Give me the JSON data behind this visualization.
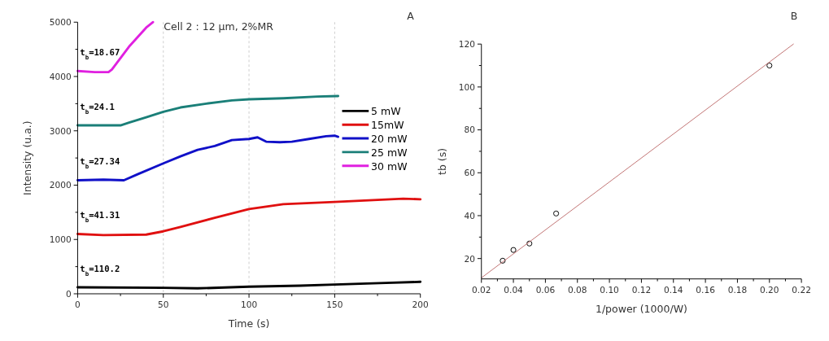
{
  "chart_data": [
    {
      "type": "line",
      "title": "Cell 2 :  12 µm, 2%MR",
      "xlabel": "Time (s)",
      "ylabel": "Intensity (u.a.)",
      "xlim": [
        0,
        200
      ],
      "xticks": [
        0,
        50,
        100,
        150,
        200
      ],
      "ylim": [
        0,
        5000
      ],
      "yticks": [
        0,
        1000,
        2000,
        3000,
        4000,
        5000
      ],
      "grid": "x",
      "legend": "right",
      "marker": "none",
      "line_style": "solid",
      "annotations": [
        "A",
        {
          "text": "t$_{b}$=18.67",
          "y": 4100
        },
        {
          "text": "t$_{b}$=24.1",
          "y": 3100
        },
        {
          "text": "t$_{b}$=27.34",
          "y": 2090
        },
        {
          "text": "t$_{b}$=41.31",
          "y": 1100
        },
        {
          "text": "t$_{b}$=110.2",
          "y": 120
        }
      ],
      "series": [
        {
          "name": "5 mW",
          "color": "#000000",
          "x": [
            0,
            50,
            70,
            100,
            130,
            150,
            180,
            200
          ],
          "values": [
            120,
            110,
            100,
            130,
            150,
            170,
            200,
            220
          ]
        },
        {
          "name": "15mW",
          "color": "#e01010",
          "x": [
            0,
            15,
            40,
            50,
            60,
            80,
            100,
            120,
            150,
            170,
            190,
            200
          ],
          "values": [
            1100,
            1080,
            1090,
            1150,
            1230,
            1400,
            1560,
            1650,
            1690,
            1720,
            1750,
            1740
          ]
        },
        {
          "name": "20 mW",
          "color": "#1010c8",
          "x": [
            0,
            15,
            27,
            35,
            50,
            60,
            70,
            80,
            90,
            100,
            105,
            110,
            118,
            125,
            135,
            145,
            150,
            152
          ],
          "values": [
            2090,
            2100,
            2090,
            2200,
            2400,
            2530,
            2650,
            2720,
            2830,
            2850,
            2880,
            2800,
            2790,
            2800,
            2850,
            2900,
            2910,
            2890
          ]
        },
        {
          "name": "25 mW",
          "color": "#1a7f78",
          "x": [
            0,
            25,
            30,
            40,
            50,
            60,
            75,
            90,
            100,
            120,
            140,
            152
          ],
          "values": [
            3100,
            3100,
            3150,
            3250,
            3350,
            3430,
            3500,
            3560,
            3580,
            3600,
            3630,
            3640
          ]
        },
        {
          "name": "30 mW",
          "color": "#e020e0",
          "x": [
            0,
            10,
            18,
            20,
            30,
            40,
            44
          ],
          "values": [
            4100,
            4080,
            4080,
            4130,
            4550,
            4900,
            5000
          ]
        }
      ]
    },
    {
      "type": "scatter",
      "xlabel": "1/power (1000/W)",
      "ylabel": "tb (s)",
      "xlim": [
        0.02,
        0.22
      ],
      "xticks": [
        {
          "value": 0.02,
          "label": "0.02"
        },
        {
          "value": 0.04,
          "label": "0.04"
        },
        {
          "value": 0.06,
          "label": "0.06"
        },
        {
          "value": 0.08,
          "label": "0.08"
        },
        {
          "value": 0.1,
          "label": "0.10"
        },
        {
          "value": 0.12,
          "label": "0.12"
        },
        {
          "value": 0.14,
          "label": "0.14"
        },
        {
          "value": 0.16,
          "label": "0.16"
        },
        {
          "value": 0.18,
          "label": "0.18"
        },
        {
          "value": 0.2,
          "label": "0.20"
        },
        {
          "value": 0.22,
          "label": "0.22"
        }
      ],
      "ylim": [
        10.5,
        120
      ],
      "yticks": [
        20,
        40,
        60,
        80,
        100,
        120
      ],
      "grid": false,
      "legend": false,
      "annotations": [
        "B"
      ],
      "series": [
        {
          "type": "scatter",
          "color": "#000000",
          "marker": "circle",
          "x": [
            0.0333,
            0.04,
            0.05,
            0.0667,
            0.2
          ],
          "values": [
            19,
            24,
            27,
            41,
            110
          ]
        },
        {
          "type": "line",
          "color": "#c07070",
          "marker": "none",
          "x": [
            0.02,
            0.215
          ],
          "values": [
            11,
            120
          ]
        }
      ]
    }
  ]
}
